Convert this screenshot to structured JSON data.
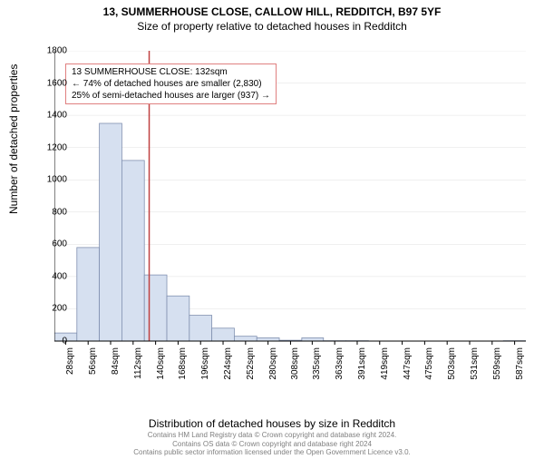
{
  "title": "13, SUMMERHOUSE CLOSE, CALLOW HILL, REDDITCH, B97 5YF",
  "subtitle": "Size of property relative to detached houses in Redditch",
  "ylabel": "Number of detached properties",
  "xlabel": "Distribution of detached houses by size in Redditch",
  "footer1": "Contains HM Land Registry data © Crown copyright and database right 2024.",
  "footer2": "Contains OS data © Crown copyright and database right 2024",
  "footer3": "Contains public sector information licensed under the Open Government Licence v3.0.",
  "annotation": {
    "line1": "13 SUMMERHOUSE CLOSE: 132sqm",
    "line2": "← 74% of detached houses are smaller (2,830)",
    "line3": "25% of semi-detached houses are larger (937) →",
    "border_color": "#e08080"
  },
  "chart": {
    "type": "histogram",
    "background_color": "#ffffff",
    "bar_fill": "#d6e0f0",
    "bar_stroke": "#8090b0",
    "marker_line_color": "#c04040",
    "marker_x": 132,
    "grid_color": "#e0e0e0",
    "axis_color": "#000000",
    "ylim": [
      0,
      1800
    ],
    "ytick_step": 200,
    "xlim": [
      14,
      601
    ],
    "xticks": [
      28,
      56,
      84,
      112,
      140,
      168,
      196,
      224,
      252,
      280,
      308,
      335,
      363,
      391,
      419,
      447,
      475,
      503,
      531,
      559,
      587
    ],
    "xtick_suffix": "sqm",
    "bin_width": 28,
    "bars": [
      {
        "x0": 14,
        "x1": 42,
        "value": 50
      },
      {
        "x0": 42,
        "x1": 70,
        "value": 580
      },
      {
        "x0": 70,
        "x1": 98,
        "value": 1350
      },
      {
        "x0": 98,
        "x1": 126,
        "value": 1120
      },
      {
        "x0": 126,
        "x1": 154,
        "value": 410
      },
      {
        "x0": 154,
        "x1": 182,
        "value": 280
      },
      {
        "x0": 182,
        "x1": 210,
        "value": 160
      },
      {
        "x0": 210,
        "x1": 238,
        "value": 80
      },
      {
        "x0": 238,
        "x1": 266,
        "value": 30
      },
      {
        "x0": 266,
        "x1": 294,
        "value": 20
      },
      {
        "x0": 294,
        "x1": 322,
        "value": 5
      },
      {
        "x0": 322,
        "x1": 349,
        "value": 20
      },
      {
        "x0": 349,
        "x1": 377,
        "value": 2
      },
      {
        "x0": 377,
        "x1": 405,
        "value": 2
      },
      {
        "x0": 405,
        "x1": 433,
        "value": 0
      },
      {
        "x0": 433,
        "x1": 461,
        "value": 0
      },
      {
        "x0": 461,
        "x1": 489,
        "value": 0
      },
      {
        "x0": 489,
        "x1": 517,
        "value": 0
      },
      {
        "x0": 517,
        "x1": 545,
        "value": 0
      },
      {
        "x0": 545,
        "x1": 573,
        "value": 0
      },
      {
        "x0": 573,
        "x1": 601,
        "value": 2
      }
    ],
    "tick_fontsize": 10,
    "label_fontsize": 12
  }
}
